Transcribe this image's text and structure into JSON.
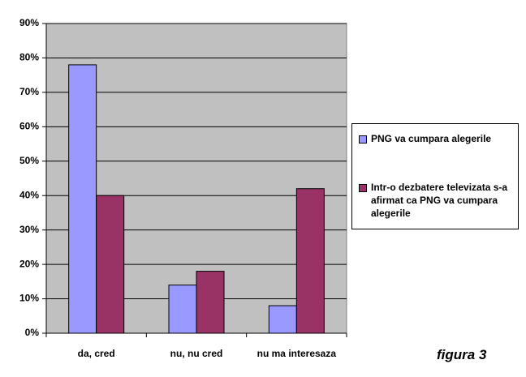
{
  "chart_data": {
    "type": "bar",
    "categories": [
      "da, cred",
      "nu, nu cred",
      "nu ma interesaza"
    ],
    "series": [
      {
        "name": "PNG va cumpara alegerile",
        "color": "#9999ff",
        "values": [
          78,
          14,
          8
        ]
      },
      {
        "name": "Intr-o dezbatere televizata s-a afirmat ca PNG va cumpara alegerile",
        "color": "#993366",
        "values": [
          40,
          18,
          42
        ]
      }
    ],
    "ylim": [
      0,
      90
    ],
    "yticks": [
      {
        "value": 0,
        "label": "0%"
      },
      {
        "value": 10,
        "label": "10%"
      },
      {
        "value": 20,
        "label": "20%"
      },
      {
        "value": 30,
        "label": "30%"
      },
      {
        "value": 40,
        "label": "40%"
      },
      {
        "value": 50,
        "label": "50%"
      },
      {
        "value": 60,
        "label": "60%"
      },
      {
        "value": 70,
        "label": "70%"
      },
      {
        "value": 80,
        "label": "80%"
      },
      {
        "value": 90,
        "label": "90%"
      }
    ],
    "grid": true,
    "plot_background": "#c0c0c0",
    "annotation": "figura 3"
  }
}
